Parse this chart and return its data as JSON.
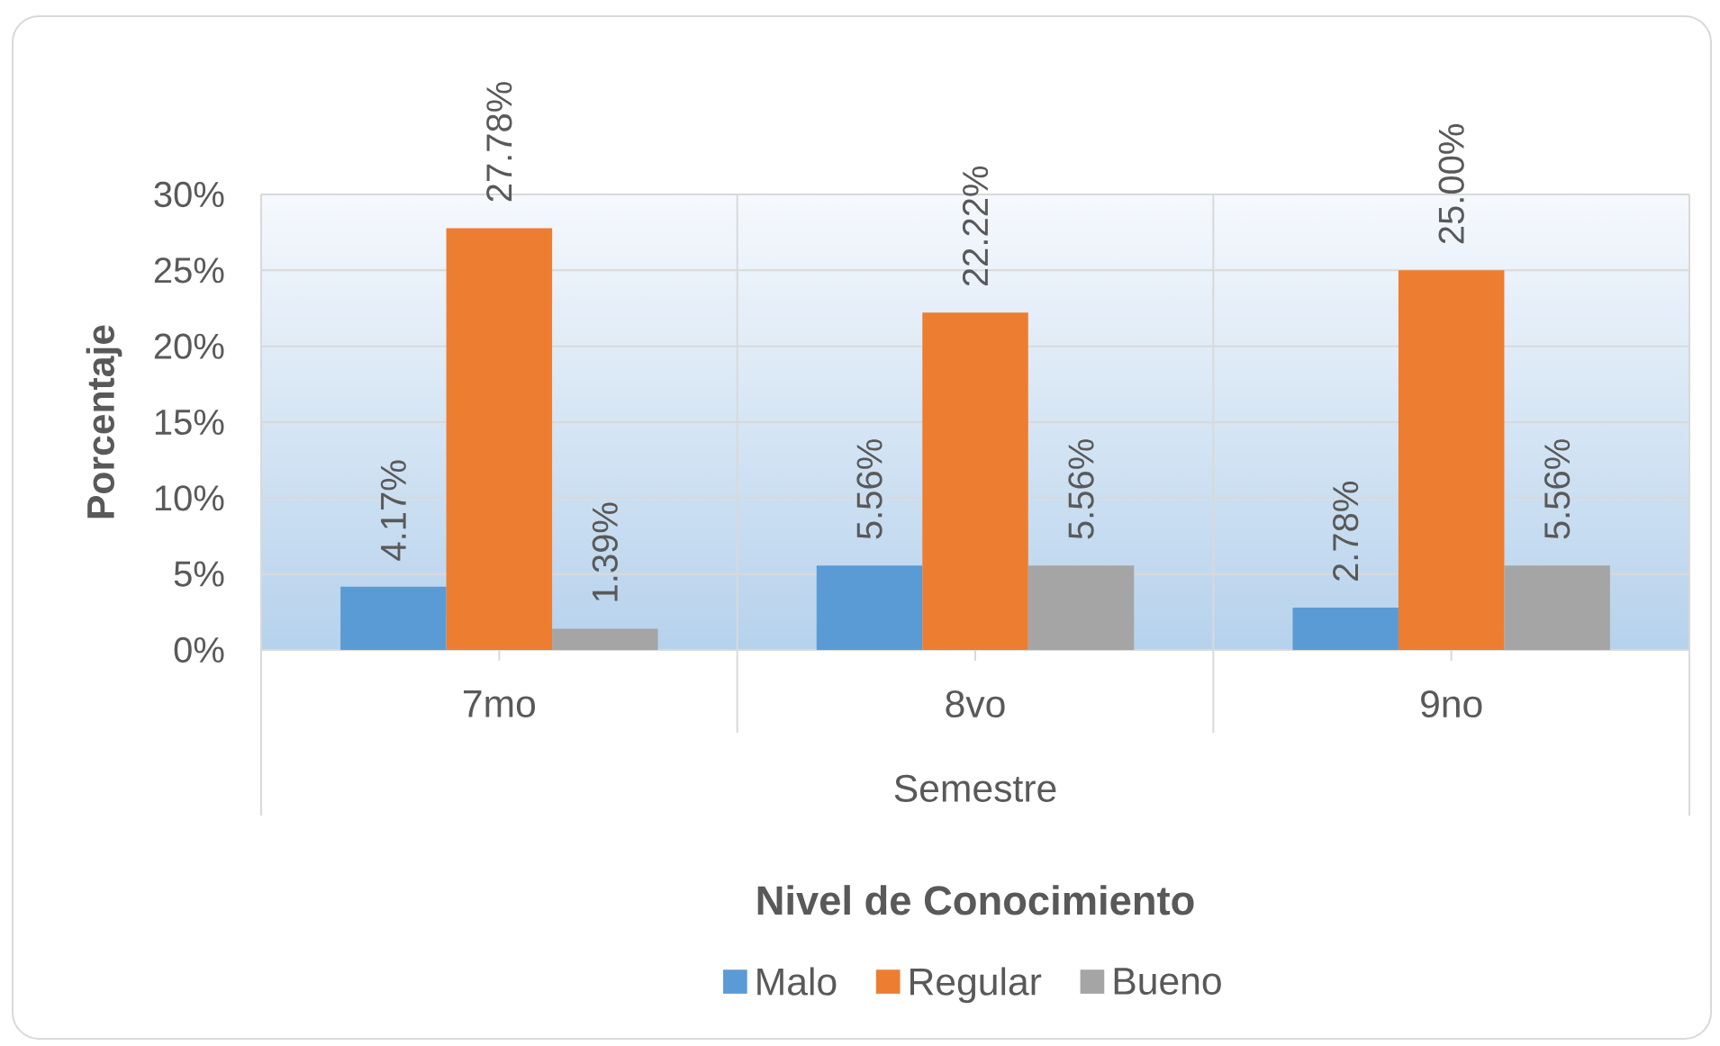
{
  "chart_data": {
    "type": "bar",
    "xlabel": "Semestre",
    "ylabel": "Porcentaje",
    "legend_title": "Nivel de Conocimiento",
    "categories": [
      "7mo",
      "8vo",
      "9no"
    ],
    "series": [
      {
        "name": "Malo",
        "color": "#5b9bd5",
        "values": [
          4.17,
          5.56,
          2.78
        ],
        "value_labels": [
          "4.17%",
          "5.56%",
          "2.78%"
        ]
      },
      {
        "name": "Regular",
        "color": "#ed7d31",
        "values": [
          27.78,
          22.22,
          25.0
        ],
        "value_labels": [
          "27.78%",
          "22.22%",
          "25.00%"
        ]
      },
      {
        "name": "Bueno",
        "color": "#a5a5a5",
        "values": [
          1.39,
          5.56,
          5.56
        ],
        "value_labels": [
          "1.39%",
          "5.56%",
          "5.56%"
        ]
      }
    ],
    "ylim": [
      0,
      30
    ],
    "yticks": [
      {
        "value": 0,
        "label": "0%"
      },
      {
        "value": 5,
        "label": "5%"
      },
      {
        "value": 10,
        "label": "10%"
      },
      {
        "value": 15,
        "label": "15%"
      },
      {
        "value": 20,
        "label": "20%"
      },
      {
        "value": 25,
        "label": "25%"
      },
      {
        "value": 30,
        "label": "30%"
      }
    ],
    "grid": true,
    "legend": "bottom"
  }
}
